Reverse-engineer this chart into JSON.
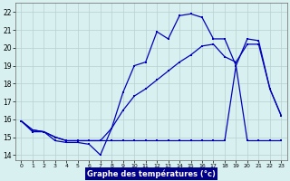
{
  "title": "Graphe des températures (°c)",
  "background_color": "#d8f0f0",
  "line_color": "#0000bb",
  "grid_color": "#b8d0d0",
  "xlim": [
    -0.5,
    23.5
  ],
  "ylim": [
    13.7,
    22.5
  ],
  "yticks": [
    14,
    15,
    16,
    17,
    18,
    19,
    20,
    21,
    22
  ],
  "xticks": [
    0,
    1,
    2,
    3,
    4,
    5,
    6,
    7,
    8,
    9,
    10,
    11,
    12,
    13,
    14,
    15,
    16,
    17,
    18,
    19,
    20,
    21,
    22,
    23
  ],
  "line1_x": [
    0,
    1,
    2,
    3,
    4,
    5,
    6,
    7,
    8,
    9,
    10,
    11,
    12,
    13,
    14,
    15,
    16,
    17,
    18,
    19,
    20,
    21,
    22,
    23
  ],
  "line1_y": [
    15.9,
    15.4,
    15.3,
    14.8,
    14.7,
    14.7,
    14.6,
    14.0,
    15.5,
    17.5,
    19.0,
    19.2,
    20.9,
    20.5,
    21.8,
    21.9,
    21.7,
    20.5,
    20.5,
    19.0,
    20.5,
    20.4,
    17.7,
    16.2
  ],
  "line2_x": [
    0,
    1,
    2,
    3,
    4,
    5,
    6,
    7,
    8,
    9,
    10,
    11,
    12,
    13,
    14,
    15,
    16,
    17,
    18,
    19,
    20,
    21,
    22,
    23
  ],
  "line2_y": [
    15.9,
    15.4,
    15.3,
    15.0,
    14.8,
    14.8,
    14.8,
    14.8,
    15.5,
    16.5,
    17.3,
    17.7,
    18.2,
    18.7,
    19.2,
    19.6,
    20.1,
    20.2,
    19.5,
    19.2,
    20.2,
    20.2,
    17.7,
    16.2
  ],
  "line3_x": [
    0,
    1,
    2,
    3,
    4,
    5,
    6,
    7,
    8,
    9,
    10,
    11,
    12,
    13,
    14,
    15,
    16,
    17,
    18,
    19,
    20,
    21,
    22,
    23
  ],
  "line3_y": [
    15.9,
    15.3,
    15.3,
    15.0,
    14.8,
    14.8,
    14.8,
    14.8,
    14.8,
    14.8,
    14.8,
    14.8,
    14.8,
    14.8,
    14.8,
    14.8,
    14.8,
    14.8,
    14.8,
    19.0,
    14.8,
    14.8,
    14.8,
    14.8
  ]
}
